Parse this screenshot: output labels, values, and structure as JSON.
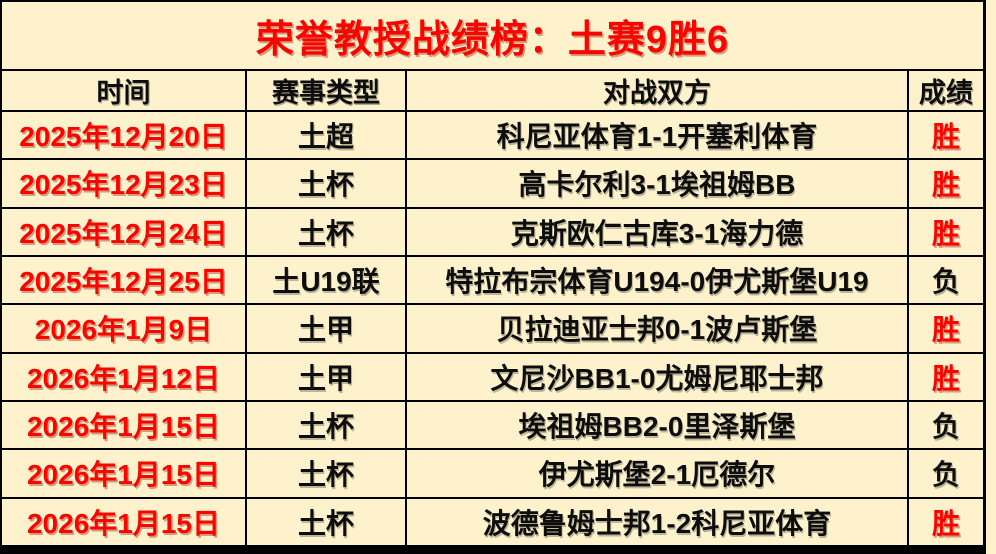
{
  "title": "荣誉教授战绩榜：土赛9胜6",
  "colors": {
    "background": "#FDF2CC",
    "border": "#000000",
    "title_red": "#F80500",
    "win_red": "#F80500",
    "loss_black": "#0D0D0D"
  },
  "table": {
    "headers": [
      "时间",
      "赛事类型",
      "对战双方",
      "成绩"
    ],
    "rows": [
      {
        "date": "2025年12月20日",
        "league": "土超",
        "match": "科尼亚体育1-1开塞利体育",
        "result": "胜",
        "result_type": "win"
      },
      {
        "date": "2025年12月23日",
        "league": "土杯",
        "match": "高卡尔利3-1埃祖姆BB",
        "result": "胜",
        "result_type": "win"
      },
      {
        "date": "2025年12月24日",
        "league": "土杯",
        "match": "克斯欧仁古库3-1海力德",
        "result": "胜",
        "result_type": "win"
      },
      {
        "date": "2025年12月25日",
        "league": "土U19联",
        "match": "特拉布宗体育U194-0伊尤斯堡U19",
        "result": "负",
        "result_type": "loss"
      },
      {
        "date": "2026年1月9日",
        "league": "土甲",
        "match": "贝拉迪亚士邦0-1波卢斯堡",
        "result": "胜",
        "result_type": "win"
      },
      {
        "date": "2026年1月12日",
        "league": "土甲",
        "match": "文尼沙BB1-0尤姆尼耶士邦",
        "result": "胜",
        "result_type": "win"
      },
      {
        "date": "2026年1月15日",
        "league": "土杯",
        "match": "埃祖姆BB2-0里泽斯堡",
        "result": "负",
        "result_type": "loss"
      },
      {
        "date": "2026年1月15日",
        "league": "土杯",
        "match": "伊尤斯堡2-1厄德尔",
        "result": "负",
        "result_type": "loss"
      },
      {
        "date": "2026年1月15日",
        "league": "土杯",
        "match": "波德鲁姆士邦1-2科尼亚体育",
        "result": "胜",
        "result_type": "win"
      }
    ]
  }
}
